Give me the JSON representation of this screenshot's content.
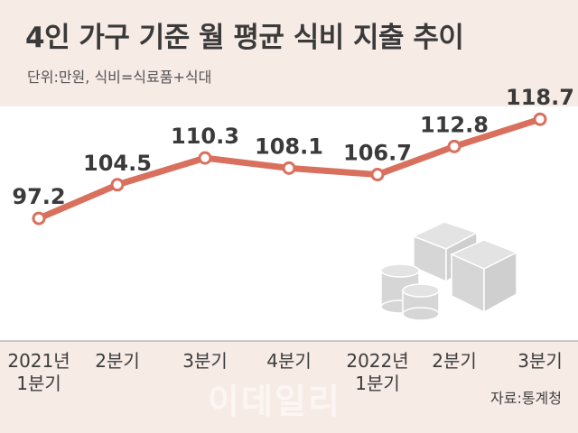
{
  "title": "4인 가구 기준 월 평균 식비 지출 추이",
  "unit_note": "단위:만원, 식비=식료품+식대",
  "source": "자료:통계청",
  "watermark": "이데일리",
  "colors": {
    "line": "#d9705e",
    "background": "#f7ebe5",
    "plot_area": "#ffffff",
    "text": "#3a3a3a"
  },
  "decoration_icon": "coins-and-banknotes-icon",
  "chart_data": {
    "type": "line",
    "categories": [
      "2021년\n1분기",
      "2분기",
      "3분기",
      "4분기",
      "2022년\n1분기",
      "2분기",
      "3분기"
    ],
    "values": [
      97.2,
      104.5,
      110.3,
      108.1,
      106.7,
      112.8,
      118.7
    ],
    "value_labels": [
      "97.2",
      "104.5",
      "110.3",
      "108.1",
      "106.7",
      "112.8",
      "118.7"
    ],
    "title": "4인 가구 기준 월 평균 식비 지출 추이",
    "xlabel": "",
    "ylabel": "",
    "ylim": [
      80,
      125
    ],
    "grid": false,
    "legend": "none"
  }
}
